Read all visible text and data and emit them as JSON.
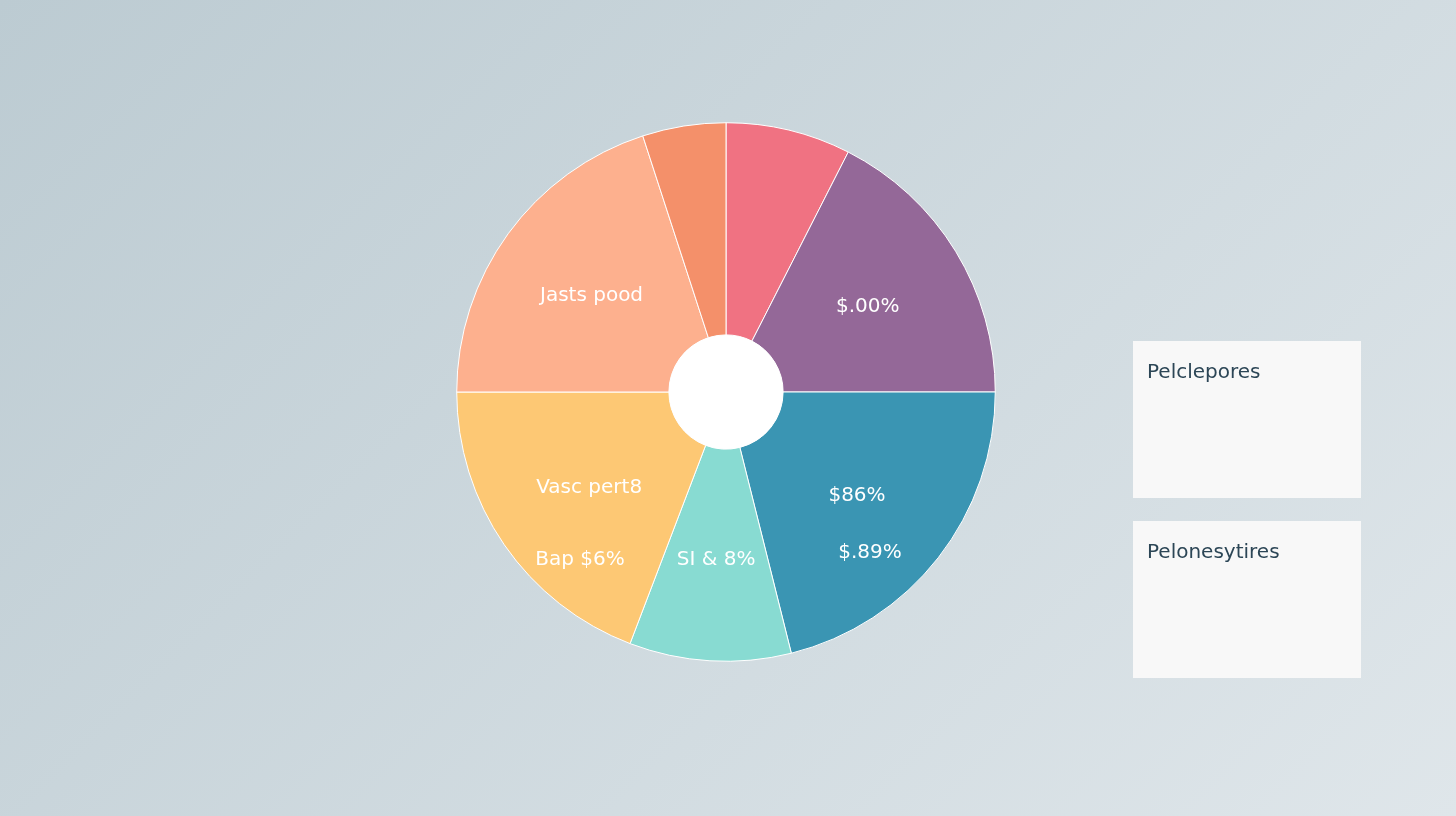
{
  "chart_data": {
    "type": "donut",
    "categories": [
      null,
      "$.00%",
      "$86%",
      "SI & 8%",
      "Vasc pert8",
      "Jasts pood",
      null
    ],
    "values": [
      7.5,
      17.5,
      21.1,
      9.7,
      19.2,
      20,
      5
    ],
    "colors": [
      "#f07282",
      "#946898",
      "#3a95b3",
      "#88dbd2",
      "#fdc874",
      "#fdb08e",
      "#f4906a"
    ],
    "annotations": [
      "$.89%",
      "Bap $6%",
      "Pelclepores",
      "Pelonesytires"
    ],
    "legend": false
  }
}
